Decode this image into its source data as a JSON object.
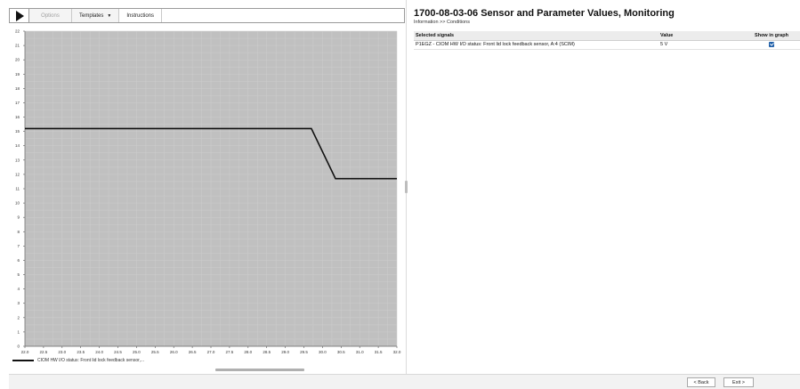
{
  "toolbar": {
    "options_label": "Options",
    "templates_label": "Templates",
    "instructions_label": "Instructions",
    "play_icon": "play-icon"
  },
  "chart_data": {
    "type": "line",
    "ylim": [
      0,
      22
    ],
    "xlim": [
      22.0,
      32.0
    ],
    "y_ticks": [
      "0",
      "1",
      "2",
      "3",
      "4",
      "5",
      "6",
      "7",
      "8",
      "9",
      "10",
      "11",
      "12",
      "13",
      "14",
      "15",
      "16",
      "17",
      "18",
      "19",
      "20",
      "21",
      "22"
    ],
    "x_ticks": [
      "22.0",
      "22.5",
      "23.0",
      "23.5",
      "24.0",
      "24.5",
      "25.0",
      "25.5",
      "26.0",
      "26.5",
      "27.0",
      "27.5",
      "28.0",
      "28.5",
      "29.0",
      "29.5",
      "30.0",
      "30.5",
      "31.0",
      "31.5",
      "32.0"
    ],
    "grid": true,
    "background_color": "#c0c0c0",
    "series": [
      {
        "name": "CIOM HW I/O status: Front lid lock feedback sensor,...",
        "color": "#111111",
        "x": [
          22.0,
          29.7,
          30.35,
          32.0
        ],
        "y": [
          15.2,
          15.2,
          11.7,
          11.7
        ]
      }
    ],
    "legend_position": "bottom-left"
  },
  "header": {
    "title": "1700-08-03-06 Sensor and Parameter Values, Monitoring",
    "breadcrumb": "Information >> Conditions"
  },
  "table": {
    "columns": [
      "Selected signals",
      "Value",
      "Show in graph"
    ],
    "rows": [
      {
        "signal": "P1EGZ - CIOM HW I/O status: Front lid lock feedback sensor, A:4 (SCIM)",
        "value": "5 V",
        "show_in_graph": true
      }
    ]
  },
  "footer": {
    "back_label": "< Back",
    "exit_label": "Exit >"
  }
}
